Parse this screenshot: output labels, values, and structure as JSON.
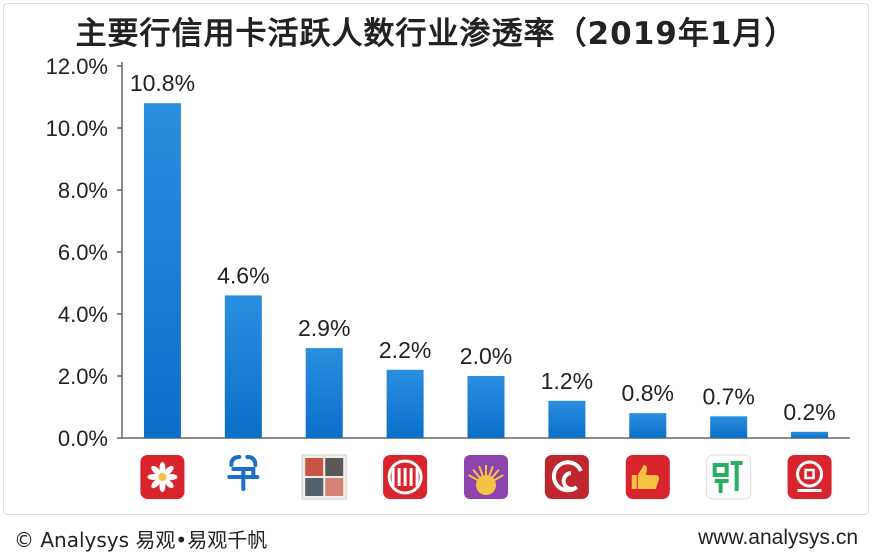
{
  "title": "主要行信用卡活跃人数行业渗透率（2019年1月）",
  "footer": {
    "copyright": "© Analysys 易观•易观千帆",
    "website": "www.analysys.cn"
  },
  "colors": {
    "bar_top": "#2a8fe0",
    "bar_bottom": "#0a6fc8",
    "axis": "#666666"
  },
  "chart_data": {
    "type": "bar",
    "title": "主要行信用卡活跃人数行业渗透率（2019年1月）",
    "xlabel": "",
    "ylabel": "",
    "ylim": [
      0,
      12
    ],
    "yticks": [
      "0.0%",
      "2.0%",
      "4.0%",
      "6.0%",
      "8.0%",
      "10.0%",
      "12.0%"
    ],
    "grid": false,
    "categories": [
      "bank-app-1",
      "bank-app-2",
      "bank-app-3",
      "bank-app-4",
      "bank-app-5",
      "bank-app-6",
      "bank-app-7",
      "bank-app-8",
      "bank-app-9"
    ],
    "values": [
      10.8,
      4.6,
      2.9,
      2.2,
      2.0,
      1.2,
      0.8,
      0.7,
      0.2
    ],
    "labels": [
      "10.8%",
      "4.6%",
      "2.9%",
      "2.2%",
      "2.0%",
      "1.2%",
      "0.8%",
      "0.7%",
      "0.2%"
    ],
    "category_icons": [
      {
        "name": "red-flower-icon",
        "color": "#d9232d"
      },
      {
        "name": "blue-bank-logo-icon",
        "color": "#1b6fc8"
      },
      {
        "name": "calligraphy-tile-icon",
        "color": "#c0392b"
      },
      {
        "name": "red-columns-icon",
        "color": "#d9232d"
      },
      {
        "name": "purple-sunrise-icon",
        "color": "#8e44ad"
      },
      {
        "name": "red-swirl-icon",
        "color": "#c0262d"
      },
      {
        "name": "thumbs-up-icon",
        "color": "#d9232d"
      },
      {
        "name": "green-character-icon",
        "color": "#27ae60"
      },
      {
        "name": "red-coin-icon",
        "color": "#d9232d"
      }
    ]
  }
}
